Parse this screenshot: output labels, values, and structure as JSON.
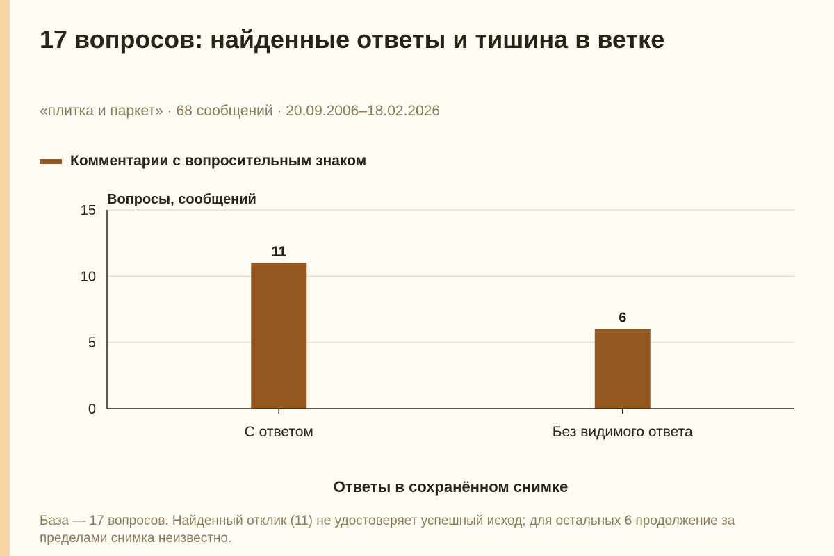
{
  "title": "17 вопросов: найденные ответы и тишина в ветке",
  "subtitle": "«плитка и паркет» · 68 сообщений · 20.09.2006–18.02.2026",
  "legend": {
    "label": "Комментарии с вопросительным знаком"
  },
  "footnote": "База — 17 вопросов. Найденный отклик (11) не удостоверяет успешный исход; для остальных 6 продолжение за пределами снимка неизвестно.",
  "colors": {
    "bar": "#955720",
    "grid": "#dcd6c8",
    "axis": "#2b2315",
    "stripe": "#f5d4a5",
    "background": "#fefbf3"
  },
  "chart_data": {
    "type": "bar",
    "categories": [
      "С ответом",
      "Без видимого ответа"
    ],
    "series": [
      {
        "name": "Комментарии с вопросительным знаком",
        "values": [
          11,
          6
        ]
      }
    ],
    "value_labels": [
      "11",
      "6"
    ],
    "ylabel": "Вопросы, сообщений",
    "xlabel": "Ответы в сохранённом снимке",
    "ylim": [
      0,
      15
    ],
    "yticks": [
      0,
      5,
      10,
      15
    ],
    "grid": true,
    "legend_position": "top-left"
  }
}
